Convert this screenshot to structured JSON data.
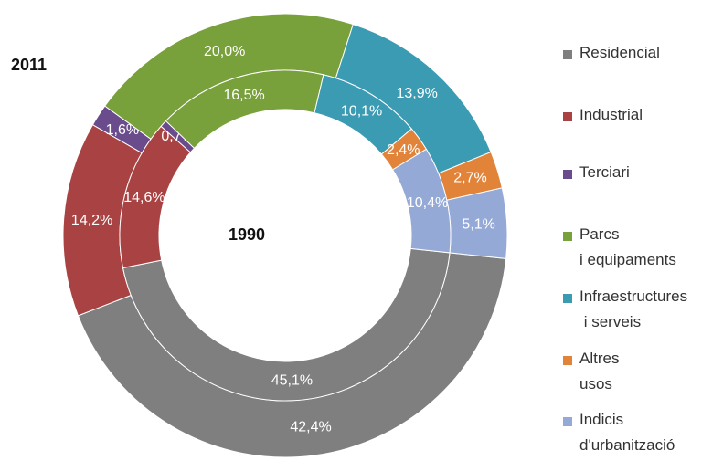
{
  "chart_data": {
    "type": "doughnut",
    "categories": [
      "Residencial",
      "Industrial",
      "Terciari",
      "Parcs\ni equipaments",
      "Infraestructures\n i serveis",
      "Altres\nusos",
      "Indicis\nd'urbanització"
    ],
    "colors": [
      "#7f7f7f",
      "#a94343",
      "#6a4b8c",
      "#78a03b",
      "#3b9bb3",
      "#e2833a",
      "#94a9d6"
    ],
    "series": [
      {
        "name": "2011",
        "values": [
          42.4,
          14.2,
          1.6,
          20.0,
          13.9,
          2.7,
          5.1
        ],
        "value_labels": [
          "42,4%",
          "14,2%",
          "1,6%",
          "20,0%",
          "13,9%",
          "2,7%",
          "5,1%"
        ]
      },
      {
        "name": "1990",
        "values": [
          45.1,
          14.6,
          0.7,
          16.5,
          10.1,
          2.4,
          10.4
        ],
        "value_labels": [
          "45,1%",
          "14,6%",
          "0,7%",
          "16,5%",
          "10,1%",
          "2,4%",
          "10,4%"
        ]
      }
    ]
  }
}
